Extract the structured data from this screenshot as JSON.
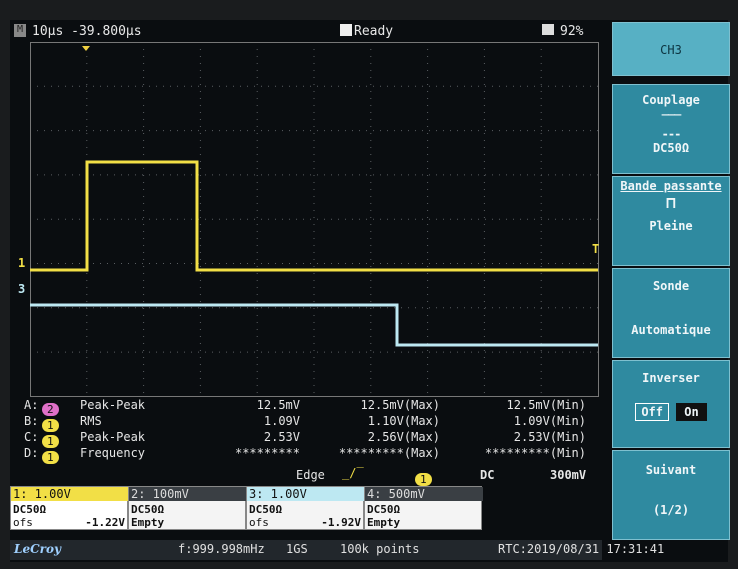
{
  "header": {
    "timebase": "10µs -39.800µs",
    "status": "Ready",
    "battery": "92%"
  },
  "markers": {
    "ch1": "1",
    "ch3": "3",
    "trigger": "T"
  },
  "menu": {
    "title": "CH3",
    "coupling_label": "Couplage",
    "coupling_value": "DC50Ω",
    "bandwidth_label": "Bande passante",
    "bandwidth_value": "Pleine",
    "probe_label": "Sonde",
    "probe_value": "Automatique",
    "invert_label": "Inverser",
    "invert_off": "Off",
    "invert_on": "On",
    "next_label": "Suivant",
    "next_page": "(1/2)"
  },
  "measurements": [
    {
      "id": "A:",
      "channel": "2",
      "name": "Peak-Peak",
      "value": "12.5mV",
      "max": "12.5mV(Max)",
      "min": "12.5mV(Min)"
    },
    {
      "id": "B:",
      "channel": "1",
      "name": "RMS",
      "value": "1.09V",
      "max": "1.10V(Max)",
      "min": "1.09V(Min)"
    },
    {
      "id": "C:",
      "channel": "1",
      "name": "Peak-Peak",
      "value": "2.53V",
      "max": "2.56V(Max)",
      "min": "2.53V(Min)"
    },
    {
      "id": "D:",
      "channel": "1",
      "name": "Frequency",
      "value": "*********",
      "max": "*********(Max)",
      "min": "*********(Min)"
    }
  ],
  "trigger": {
    "mode": "Edge",
    "channel": "1",
    "coupling": "DC",
    "level": "300mV"
  },
  "channels": [
    {
      "scale": "1: 1.00V",
      "coupling": "DC50Ω",
      "offset_label": "ofs",
      "offset": "-1.22V"
    },
    {
      "scale": "2: 100mV",
      "coupling": "DC50Ω",
      "offset": "Empty"
    },
    {
      "scale": "3: 1.00V",
      "coupling": "DC50Ω",
      "offset_label": "ofs",
      "offset": "-1.92V"
    },
    {
      "scale": "4: 500mV",
      "coupling": "DC50Ω",
      "offset": "Empty"
    }
  ],
  "footer": {
    "brand": "LeCroy",
    "frequency": "f:999.998mHz",
    "sample_rate": "1GS",
    "points": "100k points",
    "rtc": "RTC:2019/08/31 17:31:41"
  }
}
